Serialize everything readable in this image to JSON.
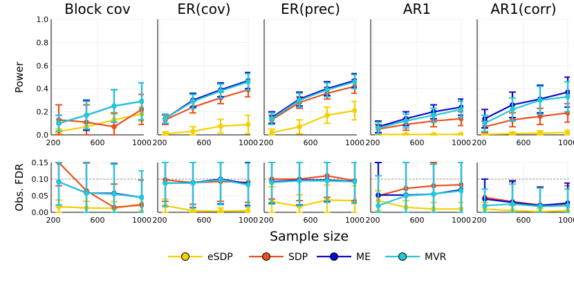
{
  "figure": {
    "xlabel": "Sample size",
    "row_labels": [
      "Power",
      "Obs. FDR"
    ],
    "x_ticks": [
      200,
      600,
      1000
    ],
    "x_tick_labels": [
      "200",
      "600",
      "1000"
    ],
    "power_y_ticks": [
      "0.0",
      "0.2",
      "0.4",
      "0.6",
      "0.8",
      "1.0"
    ],
    "fdr_y_ticks": [
      "0.00",
      "0.05",
      "0.10",
      "0.15"
    ],
    "target_fdr": 0.1
  },
  "colors": {
    "eSDP": "#f5d000",
    "SDP": "#e8501e",
    "ME": "#0a0ad0",
    "MVR": "#22c8d8",
    "grid": "#ececec",
    "dash": "#909090"
  },
  "legend": [
    {
      "name": "eSDP"
    },
    {
      "name": "SDP"
    },
    {
      "name": "ME"
    },
    {
      "name": "MVR"
    }
  ],
  "chart_data": {
    "type": "line",
    "x": [
      250,
      500,
      750,
      1000
    ],
    "panels": [
      {
        "title": "Block cov",
        "power": [
          {
            "name": "eSDP",
            "values": [
              0.03,
              0.07,
              0.13,
              0.18
            ],
            "err": [
              0.02,
              0.03,
              0.05,
              0.06
            ]
          },
          {
            "name": "SDP",
            "values": [
              0.13,
              0.11,
              0.07,
              0.22
            ],
            "err": [
              0.13,
              0.15,
              0.12,
              0.13
            ]
          },
          {
            "name": "ME",
            "values": [
              0.1,
              0.17,
              0.25,
              0.29
            ],
            "err": [
              0.07,
              0.13,
              0.14,
              0.16
            ]
          },
          {
            "name": "MVR",
            "values": [
              0.1,
              0.17,
              0.25,
              0.29
            ],
            "err": [
              0.07,
              0.12,
              0.14,
              0.16
            ]
          }
        ],
        "fdr": [
          {
            "name": "eSDP",
            "values": [
              0.017,
              0.013,
              0.012,
              0.025
            ],
            "err": [
              0.02,
              0.02,
              0.02,
              0.02
            ]
          },
          {
            "name": "SDP",
            "values": [
              0.17,
              0.065,
              0.015,
              0.022
            ],
            "err": [
              0.09,
              0.09,
              0.07,
              0.075
            ]
          },
          {
            "name": "ME",
            "values": [
              0.092,
              0.058,
              0.057,
              0.045
            ],
            "err": [
              0.07,
              0.09,
              0.09,
              0.08
            ]
          },
          {
            "name": "MVR",
            "values": [
              0.092,
              0.058,
              0.055,
              0.045
            ],
            "err": [
              0.07,
              0.09,
              0.09,
              0.08
            ]
          }
        ]
      },
      {
        "title": "ER(cov)",
        "power": [
          {
            "name": "eSDP",
            "values": [
              0.01,
              0.03,
              0.075,
              0.09
            ],
            "err": [
              0.015,
              0.04,
              0.06,
              0.08
            ]
          },
          {
            "name": "SDP",
            "values": [
              0.13,
              0.24,
              0.32,
              0.39
            ],
            "err": [
              0.04,
              0.05,
              0.05,
              0.06
            ]
          },
          {
            "name": "ME",
            "values": [
              0.14,
              0.3,
              0.39,
              0.47
            ],
            "err": [
              0.04,
              0.06,
              0.06,
              0.07
            ]
          },
          {
            "name": "MVR",
            "values": [
              0.14,
              0.29,
              0.38,
              0.46
            ],
            "err": [
              0.04,
              0.06,
              0.06,
              0.07
            ]
          }
        ],
        "fdr": [
          {
            "name": "eSDP",
            "values": [
              0.02,
              0.005,
              0.003,
              0.005
            ],
            "err": [
              0.02,
              0.01,
              0.01,
              0.01
            ]
          },
          {
            "name": "SDP",
            "values": [
              0.098,
              0.089,
              0.093,
              0.09
            ],
            "err": [
              0.065,
              0.065,
              0.06,
              0.06
            ]
          },
          {
            "name": "ME",
            "values": [
              0.088,
              0.089,
              0.1,
              0.086
            ],
            "err": [
              0.07,
              0.075,
              0.075,
              0.065
            ]
          },
          {
            "name": "MVR",
            "values": [
              0.088,
              0.088,
              0.098,
              0.083
            ],
            "err": [
              0.07,
              0.075,
              0.075,
              0.065
            ]
          }
        ]
      },
      {
        "title": "ER(prec)",
        "power": [
          {
            "name": "eSDP",
            "values": [
              0.02,
              0.07,
              0.17,
              0.21
            ],
            "err": [
              0.03,
              0.06,
              0.07,
              0.08
            ]
          },
          {
            "name": "SDP",
            "values": [
              0.13,
              0.28,
              0.36,
              0.42
            ],
            "err": [
              0.04,
              0.05,
              0.05,
              0.06
            ]
          },
          {
            "name": "ME",
            "values": [
              0.15,
              0.31,
              0.4,
              0.47
            ],
            "err": [
              0.05,
              0.06,
              0.06,
              0.06
            ]
          },
          {
            "name": "MVR",
            "values": [
              0.14,
              0.3,
              0.39,
              0.46
            ],
            "err": [
              0.05,
              0.06,
              0.06,
              0.06
            ]
          }
        ],
        "fdr": [
          {
            "name": "eSDP",
            "values": [
              0.032,
              0.018,
              0.037,
              0.035
            ],
            "err": [
              0.045,
              0.035,
              0.045,
              0.045
            ]
          },
          {
            "name": "SDP",
            "values": [
              0.1,
              0.1,
              0.11,
              0.095
            ],
            "err": [
              0.06,
              0.065,
              0.065,
              0.06
            ]
          },
          {
            "name": "ME",
            "values": [
              0.092,
              0.097,
              0.097,
              0.093
            ],
            "err": [
              0.065,
              0.075,
              0.065,
              0.065
            ]
          },
          {
            "name": "MVR",
            "values": [
              0.09,
              0.095,
              0.095,
              0.092
            ],
            "err": [
              0.065,
              0.075,
              0.065,
              0.065
            ]
          }
        ]
      },
      {
        "title": "AR1",
        "power": [
          {
            "name": "eSDP",
            "values": [
              0.003,
              0.003,
              0.003,
              0.004
            ],
            "err": [
              0.006,
              0.006,
              0.006,
              0.008
            ]
          },
          {
            "name": "SDP",
            "values": [
              0.05,
              0.09,
              0.12,
              0.14
            ],
            "err": [
              0.04,
              0.05,
              0.05,
              0.06
            ]
          },
          {
            "name": "ME",
            "values": [
              0.07,
              0.14,
              0.2,
              0.24
            ],
            "err": [
              0.05,
              0.06,
              0.06,
              0.07
            ]
          },
          {
            "name": "MVR",
            "values": [
              0.06,
              0.12,
              0.17,
              0.22
            ],
            "err": [
              0.05,
              0.06,
              0.06,
              0.07
            ]
          }
        ],
        "fdr": [
          {
            "name": "eSDP",
            "values": [
              0.035,
              0.015,
              0.01,
              0.01
            ],
            "err": [
              0.03,
              0.02,
              0.02,
              0.02
            ]
          },
          {
            "name": "SDP",
            "values": [
              0.05,
              0.072,
              0.08,
              0.083
            ],
            "err": [
              0.1,
              0.11,
              0.105,
              0.1
            ]
          },
          {
            "name": "ME",
            "values": [
              0.052,
              0.052,
              0.055,
              0.068
            ],
            "err": [
              0.1,
              0.1,
              0.09,
              0.09
            ]
          },
          {
            "name": "MVR",
            "values": [
              0.02,
              0.05,
              0.055,
              0.065
            ],
            "err": [
              0.09,
              0.1,
              0.09,
              0.09
            ]
          }
        ]
      },
      {
        "title": "AR1(corr)",
        "power": [
          {
            "name": "eSDP",
            "values": [
              0.005,
              0.01,
              0.015,
              0.02
            ],
            "err": [
              0.01,
              0.015,
              0.02,
              0.02
            ]
          },
          {
            "name": "SDP",
            "values": [
              0.07,
              0.13,
              0.16,
              0.19
            ],
            "err": [
              0.05,
              0.06,
              0.07,
              0.08
            ]
          },
          {
            "name": "ME",
            "values": [
              0.14,
              0.26,
              0.31,
              0.37
            ],
            "err": [
              0.08,
              0.11,
              0.12,
              0.13
            ]
          },
          {
            "name": "MVR",
            "values": [
              0.1,
              0.22,
              0.3,
              0.33
            ],
            "err": [
              0.07,
              0.1,
              0.12,
              0.13
            ]
          }
        ],
        "fdr": [
          {
            "name": "eSDP",
            "values": [
              0.01,
              0.005,
              0.002,
              0.005
            ],
            "err": [
              0.02,
              0.015,
              0.01,
              0.015
            ]
          },
          {
            "name": "SDP",
            "values": [
              0.045,
              0.032,
              0.022,
              0.025
            ],
            "err": [
              0.055,
              0.06,
              0.055,
              0.055
            ]
          },
          {
            "name": "ME",
            "values": [
              0.04,
              0.03,
              0.02,
              0.028
            ],
            "err": [
              0.06,
              0.065,
              0.055,
              0.06
            ]
          },
          {
            "name": "MVR",
            "values": [
              0.02,
              0.025,
              0.018,
              0.02
            ],
            "err": [
              0.05,
              0.06,
              0.055,
              0.05
            ]
          }
        ]
      }
    ]
  }
}
